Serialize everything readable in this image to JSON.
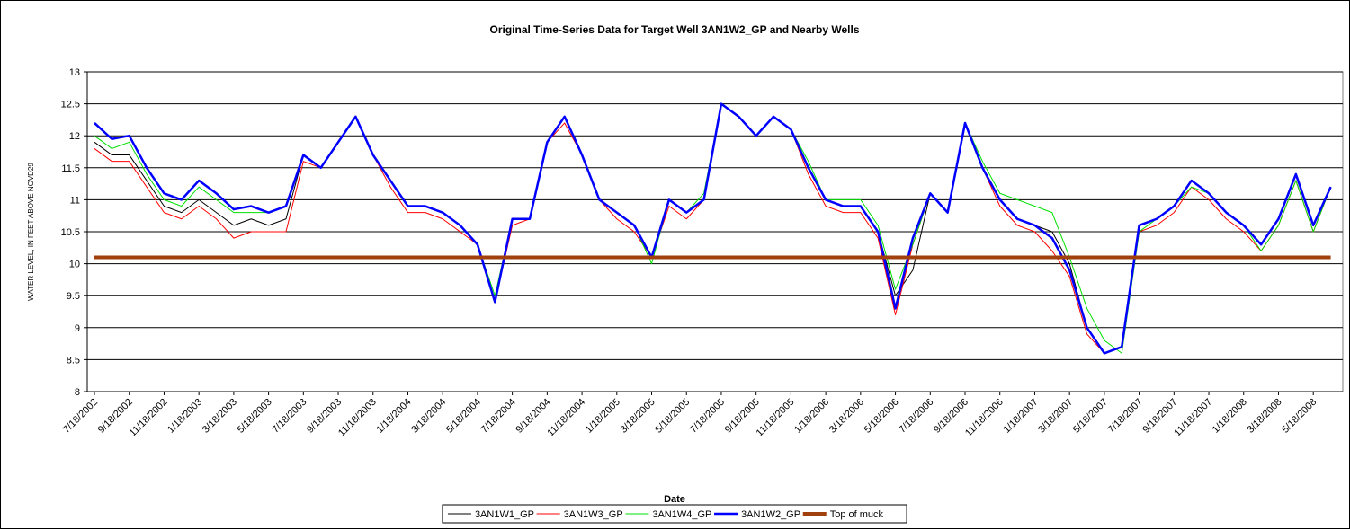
{
  "chart_data": {
    "type": "line",
    "title": "Original Time-Series Data for Target Well 3AN1W2_GP and Nearby Wells",
    "x_label": "Date",
    "y_label": "WATER LEVEL, IN FEET ABOVE NGVD29",
    "categories": [
      "7/18/2002",
      null,
      "9/18/2002",
      null,
      "11/18/2002",
      null,
      "1/18/2003",
      null,
      "3/18/2003",
      null,
      "5/18/2003",
      null,
      "7/18/2003",
      null,
      "9/18/2003",
      null,
      "11/18/2003",
      null,
      "1/18/2004",
      null,
      "3/18/2004",
      null,
      "5/18/2004",
      null,
      "7/18/2004",
      null,
      "9/18/2004",
      null,
      "11/18/2004",
      null,
      "1/18/2005",
      null,
      "3/18/2005",
      null,
      "5/18/2005",
      null,
      "7/18/2005",
      null,
      "9/18/2005",
      null,
      "11/18/2005",
      null,
      "1/18/2006",
      null,
      "3/18/2006",
      null,
      "5/18/2006",
      null,
      "7/18/2006",
      null,
      "9/18/2006",
      null,
      "11/18/2006",
      null,
      "1/18/2007",
      null,
      "3/18/2007",
      null,
      "5/18/2007",
      null,
      "7/18/2007",
      null,
      "9/18/2007",
      null,
      "11/18/2007",
      null,
      "1/18/2008",
      null,
      "3/18/2008",
      null,
      "5/18/2008",
      null
    ],
    "series": [
      {
        "name": "3AN1W1_GP",
        "color": "#000000",
        "width": 1,
        "values": [
          11.9,
          11.7,
          11.7,
          11.3,
          10.9,
          10.8,
          11.0,
          10.8,
          10.6,
          10.7,
          10.6,
          10.7,
          11.7,
          11.5,
          11.9,
          12.3,
          11.7,
          11.3,
          10.9,
          10.9,
          10.8,
          10.6,
          10.3,
          9.4,
          10.7,
          10.7,
          11.9,
          12.3,
          11.7,
          11.0,
          10.8,
          10.6,
          10.1,
          11.0,
          10.8,
          11.0,
          12.5,
          12.3,
          12.0,
          12.3,
          12.1,
          11.5,
          11.0,
          10.9,
          10.9,
          10.5,
          9.5,
          9.9,
          11.1,
          10.8,
          12.2,
          11.5,
          11.0,
          10.7,
          10.6,
          10.5,
          10.0,
          9.0,
          8.6,
          8.7,
          10.6,
          10.7,
          10.9,
          11.3,
          11.1,
          10.8,
          10.6,
          10.3,
          10.7,
          11.4,
          10.6,
          11.2
        ]
      },
      {
        "name": "3AN1W3_GP",
        "color": "#ff0000",
        "width": 1,
        "values": [
          11.8,
          11.6,
          11.6,
          11.2,
          10.8,
          10.7,
          10.9,
          10.7,
          10.4,
          10.5,
          10.5,
          10.5,
          11.6,
          11.5,
          11.9,
          12.3,
          11.7,
          11.2,
          10.8,
          10.8,
          10.7,
          10.5,
          10.3,
          9.4,
          10.6,
          10.7,
          11.9,
          12.2,
          11.7,
          11.0,
          10.7,
          10.5,
          10.1,
          10.9,
          10.7,
          11.0,
          12.5,
          12.3,
          12.0,
          12.3,
          12.1,
          11.4,
          10.9,
          10.8,
          10.8,
          10.4,
          9.2,
          10.3,
          11.1,
          10.8,
          12.2,
          11.5,
          10.9,
          10.6,
          10.5,
          10.2,
          9.8,
          8.9,
          8.6,
          8.7,
          10.5,
          10.6,
          10.8,
          11.2,
          11.0,
          10.7,
          10.5,
          10.2,
          10.6,
          11.3,
          10.5,
          11.2
        ]
      },
      {
        "name": "3AN1W4_GP",
        "color": "#00e000",
        "width": 1,
        "values": [
          12.0,
          11.8,
          11.9,
          11.4,
          11.0,
          10.9,
          11.2,
          11.0,
          10.8,
          10.8,
          10.8,
          10.9,
          11.7,
          11.5,
          11.9,
          12.3,
          11.7,
          11.3,
          10.9,
          10.9,
          10.8,
          10.6,
          10.3,
          9.5,
          10.7,
          10.7,
          11.9,
          12.3,
          11.7,
          11.0,
          10.8,
          10.6,
          10.0,
          11.0,
          10.8,
          11.1,
          12.5,
          12.3,
          12.0,
          12.3,
          12.1,
          11.6,
          11.0,
          11.0,
          11.0,
          10.6,
          9.6,
          10.3,
          11.1,
          10.8,
          12.2,
          11.6,
          11.1,
          11.0,
          10.9,
          10.8,
          10.1,
          9.3,
          8.8,
          8.6,
          10.5,
          10.7,
          10.9,
          11.2,
          11.1,
          10.8,
          10.6,
          10.2,
          10.6,
          11.3,
          10.5,
          11.2
        ]
      },
      {
        "name": "3AN1W2_GP",
        "color": "#0000ff",
        "width": 2.5,
        "values": [
          12.2,
          11.95,
          12.0,
          11.5,
          11.1,
          11.0,
          11.3,
          11.1,
          10.85,
          10.9,
          10.8,
          10.9,
          11.7,
          11.5,
          11.9,
          12.3,
          11.7,
          11.3,
          10.9,
          10.9,
          10.8,
          10.6,
          10.3,
          9.4,
          10.7,
          10.7,
          11.9,
          12.3,
          11.7,
          11.0,
          10.8,
          10.6,
          10.1,
          11.0,
          10.8,
          11.0,
          12.5,
          12.3,
          12.0,
          12.3,
          12.1,
          11.5,
          11.0,
          10.9,
          10.9,
          10.5,
          9.3,
          10.4,
          11.1,
          10.8,
          12.2,
          11.5,
          11.0,
          10.7,
          10.6,
          10.4,
          9.9,
          9.0,
          8.6,
          8.7,
          10.6,
          10.7,
          10.9,
          11.3,
          11.1,
          10.8,
          10.6,
          10.3,
          10.7,
          11.4,
          10.6,
          11.2
        ]
      },
      {
        "name": "Top of muck",
        "color": "#a0410d",
        "width": 4,
        "values": [
          10.1,
          10.1,
          10.1,
          10.1,
          10.1,
          10.1,
          10.1,
          10.1,
          10.1,
          10.1,
          10.1,
          10.1,
          10.1,
          10.1,
          10.1,
          10.1,
          10.1,
          10.1,
          10.1,
          10.1,
          10.1,
          10.1,
          10.1,
          10.1,
          10.1,
          10.1,
          10.1,
          10.1,
          10.1,
          10.1,
          10.1,
          10.1,
          10.1,
          10.1,
          10.1,
          10.1,
          10.1,
          10.1,
          10.1,
          10.1,
          10.1,
          10.1,
          10.1,
          10.1,
          10.1,
          10.1,
          10.1,
          10.1,
          10.1,
          10.1,
          10.1,
          10.1,
          10.1,
          10.1,
          10.1,
          10.1,
          10.1,
          10.1,
          10.1,
          10.1,
          10.1,
          10.1,
          10.1,
          10.1,
          10.1,
          10.1,
          10.1,
          10.1,
          10.1,
          10.1,
          10.1,
          10.1
        ]
      }
    ],
    "ylim": [
      8,
      13
    ],
    "yticks": [
      8,
      8.5,
      9,
      9.5,
      10,
      10.5,
      11,
      11.5,
      12,
      12.5,
      13
    ],
    "grid": true,
    "legend": "bottom"
  }
}
